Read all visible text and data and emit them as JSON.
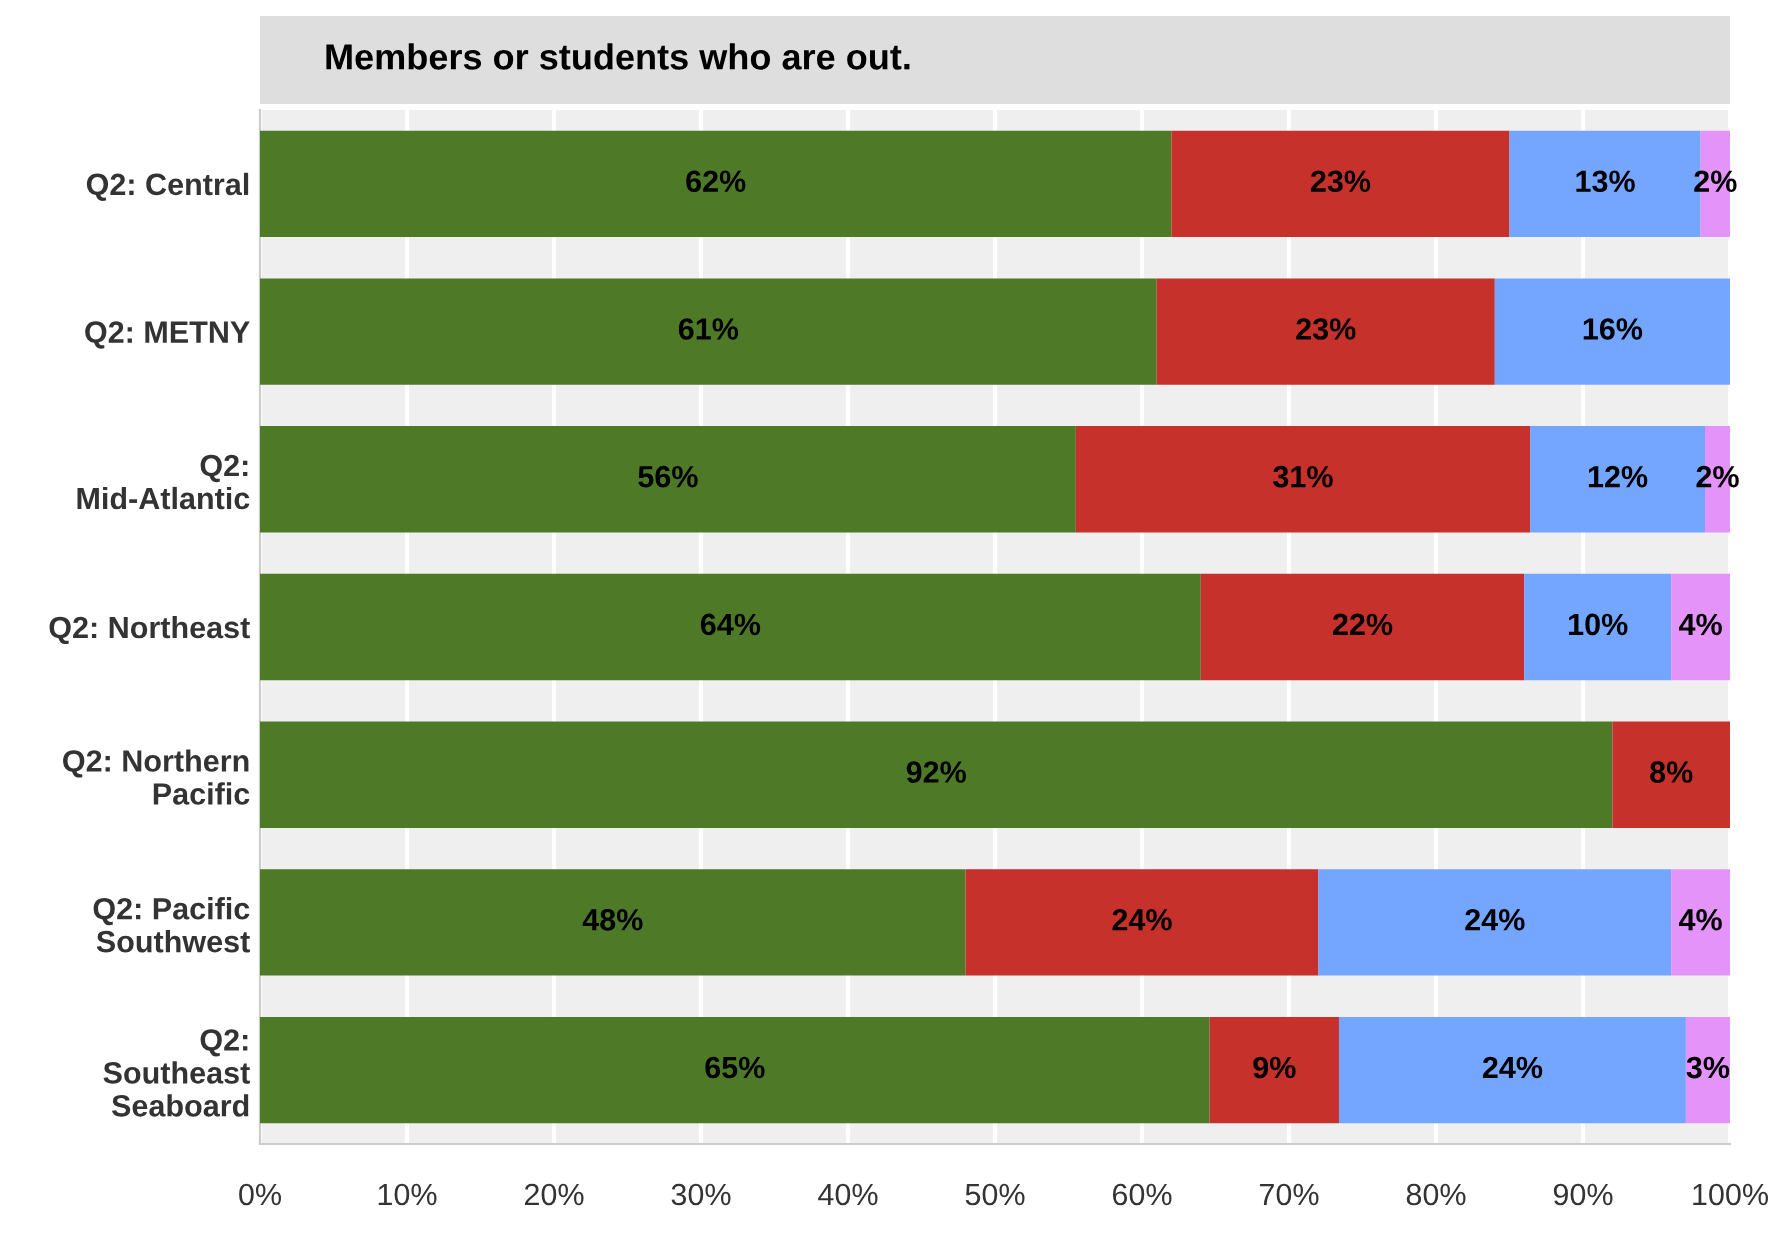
{
  "chart_data": {
    "type": "bar",
    "orientation": "horizontal",
    "stacked": true,
    "title": "Members or students who are out.",
    "categories": [
      "Q2: Central",
      "Q2: METNY",
      "Q2:\nMid-Atlantic",
      "Q2: Northeast",
      "Q2: Northern\nPacific",
      "Q2: Pacific\nSouthwest",
      "Q2:\nSoutheast\nSeaboard"
    ],
    "series": [
      {
        "color": "#4e7a28",
        "values": [
          62,
          61,
          55.5,
          64,
          92,
          48,
          64.6
        ],
        "value_labels": [
          "62%",
          "61%",
          "56%",
          "64%",
          "92%",
          "48%",
          "65%"
        ]
      },
      {
        "color": "#c7312b",
        "values": [
          23,
          23,
          30.9,
          22,
          8,
          24,
          8.8
        ],
        "value_labels": [
          "23%",
          "23%",
          "31%",
          "22%",
          "8%",
          "24%",
          "9%"
        ]
      },
      {
        "color": "#74a6ff",
        "values": [
          13,
          16,
          11.9,
          10,
          null,
          24,
          23.6
        ],
        "value_labels": [
          "13%",
          "16%",
          "12%",
          "10%",
          null,
          "24%",
          "24%"
        ]
      },
      {
        "color": "#e493f8",
        "values": [
          2,
          null,
          1.7,
          4,
          null,
          4,
          3
        ],
        "value_labels": [
          "2%",
          null,
          "2%",
          "4%",
          null,
          "4%",
          "3%"
        ]
      }
    ],
    "xlim": [
      0,
      100
    ],
    "xticks": [
      {
        "value": 0,
        "label": "0%"
      },
      {
        "value": 10,
        "label": "10%"
      },
      {
        "value": 20,
        "label": "20%"
      },
      {
        "value": 30,
        "label": "30%"
      },
      {
        "value": 40,
        "label": "40%"
      },
      {
        "value": 50,
        "label": "50%"
      },
      {
        "value": 60,
        "label": "60%"
      },
      {
        "value": 70,
        "label": "70%"
      },
      {
        "value": 80,
        "label": "80%"
      },
      {
        "value": 90,
        "label": "90%"
      },
      {
        "value": 100,
        "label": "100%"
      }
    ],
    "grid": "x",
    "legend": false
  }
}
